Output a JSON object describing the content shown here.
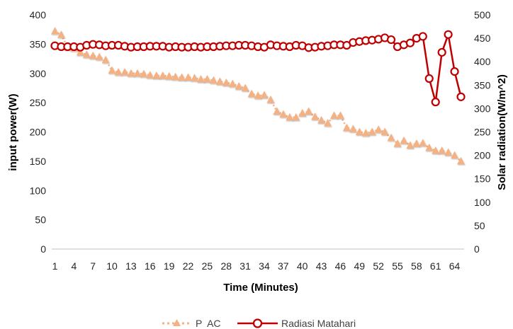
{
  "chart_data": {
    "type": "line",
    "title": "",
    "xlabel": "Time (Minutes)",
    "ylabel_left": "input power(W)",
    "ylabel_right": "Solar radiation(W/m^2)",
    "x": [
      1,
      2,
      3,
      4,
      5,
      6,
      7,
      8,
      9,
      10,
      11,
      12,
      13,
      14,
      15,
      16,
      17,
      18,
      19,
      20,
      21,
      22,
      23,
      24,
      25,
      26,
      27,
      28,
      29,
      30,
      31,
      32,
      33,
      34,
      35,
      36,
      37,
      38,
      39,
      40,
      41,
      42,
      43,
      44,
      45,
      46,
      47,
      48,
      49,
      50,
      51,
      52,
      53,
      54,
      55,
      56,
      57,
      58,
      59,
      60,
      61,
      62,
      63,
      64,
      65
    ],
    "x_tick_labels": [
      "1",
      "4",
      "7",
      "10",
      "13",
      "16",
      "19",
      "22",
      "25",
      "28",
      "31",
      "34",
      "37",
      "40",
      "43",
      "46",
      "49",
      "52",
      "55",
      "58",
      "61",
      "64"
    ],
    "ylim_left": [
      0,
      400
    ],
    "y_ticks_left": [
      0,
      50,
      100,
      150,
      200,
      250,
      300,
      350,
      400
    ],
    "ylim_right": [
      0,
      500
    ],
    "y_ticks_right": [
      0,
      50,
      100,
      150,
      200,
      250,
      300,
      350,
      400,
      450,
      500
    ],
    "grid": false,
    "legend_position": "bottom",
    "series": [
      {
        "name": "P  AC",
        "axis": "left",
        "color": "#F4B183",
        "marker": "triangle",
        "line_style": "dotted",
        "values": [
          372,
          366,
          345,
          343,
          336,
          332,
          330,
          328,
          323,
          305,
          302,
          302,
          300,
          300,
          299,
          297,
          296,
          296,
          295,
          294,
          293,
          293,
          292,
          290,
          290,
          288,
          286,
          284,
          282,
          278,
          275,
          265,
          262,
          263,
          255,
          235,
          230,
          225,
          225,
          232,
          235,
          226,
          220,
          215,
          228,
          228,
          207,
          205,
          200,
          198,
          200,
          204,
          200,
          190,
          180,
          185,
          177,
          180,
          181,
          173,
          168,
          168,
          165,
          160,
          150
        ]
      },
      {
        "name": "Radiasi Matahari",
        "axis": "right",
        "color": "#C00000",
        "marker": "circle",
        "line_style": "solid",
        "values": [
          434,
          432,
          432,
          432,
          431,
          435,
          437,
          436,
          434,
          435,
          435,
          433,
          431,
          432,
          432,
          433,
          433,
          433,
          431,
          432,
          431,
          431,
          432,
          431,
          432,
          432,
          433,
          434,
          434,
          435,
          435,
          434,
          432,
          431,
          436,
          434,
          433,
          432,
          435,
          434,
          430,
          431,
          433,
          434,
          436,
          436,
          435,
          441,
          443,
          445,
          446,
          448,
          451,
          447,
          432,
          436,
          440,
          450,
          454,
          364,
          314,
          420,
          458,
          379,
          325
        ]
      }
    ]
  }
}
